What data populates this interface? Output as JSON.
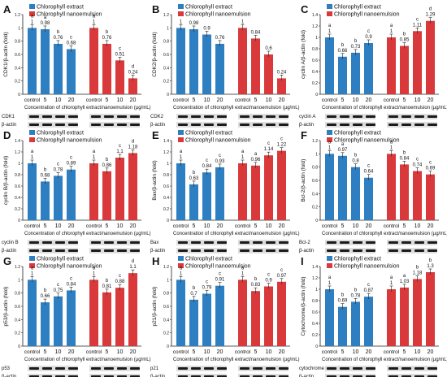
{
  "figure": {
    "shared_xlabel": "Concentration of chlorophyll extract/nanoemulsion (µg/mL)",
    "colors": {
      "extract": "#2e7fc1",
      "nano": "#d9393a"
    },
    "legend": [
      "Chlorophyll extract",
      "Chlorophyll nanoemulsion"
    ]
  },
  "chart_data": [
    {
      "panel": "A",
      "type": "bar",
      "ylabel": "CDK1/β-actin (fold)",
      "ylim": [
        0,
        1.2
      ],
      "categories": [
        "control",
        "5",
        "10",
        "20"
      ],
      "series": [
        {
          "name": "Chlorophyll extract",
          "values": [
            1,
            0.98,
            0.76,
            0.68
          ],
          "sig": [
            "a",
            "a",
            "b",
            "c"
          ]
        },
        {
          "name": "Chlorophyll nanoemulsion",
          "values": [
            1,
            0.76,
            0.51,
            0.24
          ],
          "sig": [
            "a",
            "b",
            "c",
            "d"
          ]
        }
      ],
      "blots": [
        "CDK1",
        "β-actin"
      ]
    },
    {
      "panel": "B",
      "type": "bar",
      "ylabel": "CDK2/β-actin (fold)",
      "ylim": [
        0,
        1.2
      ],
      "categories": [
        "control",
        "5",
        "10",
        "20"
      ],
      "series": [
        {
          "name": "Chlorophyll extract",
          "values": [
            1,
            0.98,
            0.9,
            0.76
          ],
          "sig": [
            "",
            "",
            "",
            ""
          ]
        },
        {
          "name": "Chlorophyll nanoemulsion",
          "values": [
            1,
            0.84,
            0.6,
            0.24
          ],
          "sig": [
            "",
            "",
            "",
            ""
          ]
        }
      ],
      "blots": [
        "CDK2",
        "β-actin"
      ]
    },
    {
      "panel": "C",
      "type": "bar",
      "ylabel": "cyclin A/β-actin (fold)",
      "ylim": [
        0,
        1.4
      ],
      "categories": [
        "control",
        "5",
        "10",
        "20"
      ],
      "series": [
        {
          "name": "Chlorophyll extract",
          "values": [
            1,
            0.66,
            0.73,
            0.9
          ],
          "sig": [
            "a",
            "b",
            "b",
            "c"
          ]
        },
        {
          "name": "Chlorophyll nanoemulsion",
          "values": [
            1,
            0.85,
            1.11,
            1.29
          ],
          "sig": [
            "a",
            "b",
            "c",
            "d"
          ]
        }
      ],
      "blots": [
        "cyclin A",
        "β-actin"
      ]
    },
    {
      "panel": "D",
      "type": "bar",
      "ylabel": "cyclin B/β-actin (fold)",
      "ylim": [
        0,
        1.4
      ],
      "categories": [
        "control",
        "5",
        "10",
        "20"
      ],
      "series": [
        {
          "name": "Chlorophyll extract",
          "values": [
            1,
            0.68,
            0.78,
            0.89
          ],
          "sig": [
            "a",
            "b",
            "c",
            "c"
          ]
        },
        {
          "name": "Chlorophyll nanoemulsion",
          "values": [
            1,
            0.86,
            1.1,
            1.18
          ],
          "sig": [
            "a",
            "b",
            "c",
            "d"
          ]
        }
      ],
      "blots": [
        "cyclin B",
        "β-actin"
      ]
    },
    {
      "panel": "E",
      "type": "bar",
      "ylabel": "Bax/β-actin (fold)",
      "ylim": [
        0,
        1.4
      ],
      "categories": [
        "control",
        "5",
        "10",
        "20"
      ],
      "series": [
        {
          "name": "Chlorophyll extract",
          "values": [
            1,
            0.63,
            0.84,
            0.93
          ],
          "sig": [
            "a",
            "b",
            "c",
            "c"
          ]
        },
        {
          "name": "Chlorophyll nanoemulsion",
          "values": [
            1,
            0.96,
            1.14,
            1.22
          ],
          "sig": [
            "a",
            "a",
            "c",
            "c"
          ]
        }
      ],
      "blots": [
        "Bax",
        "β-actin"
      ]
    },
    {
      "panel": "F",
      "type": "bar",
      "ylabel": "Bcl-2/β-actin (fold)",
      "ylim": [
        0,
        1.2
      ],
      "categories": [
        "control",
        "5",
        "10",
        "20"
      ],
      "series": [
        {
          "name": "Chlorophyll extract",
          "values": [
            1,
            0.97,
            0.8,
            0.64
          ],
          "sig": [
            "a",
            "a",
            "b",
            "c"
          ]
        },
        {
          "name": "Chlorophyll nanoemulsion",
          "values": [
            1,
            0.84,
            0.74,
            0.69
          ],
          "sig": [
            "a",
            "b",
            "c",
            "c"
          ]
        }
      ],
      "blots": [
        "Bcl-2",
        "β-actin"
      ]
    },
    {
      "panel": "G",
      "type": "bar",
      "ylabel": "p53/β-actin (fold)",
      "ylim": [
        0,
        1.2
      ],
      "categories": [
        "control",
        "5",
        "10",
        "20"
      ],
      "series": [
        {
          "name": "Chlorophyll extract",
          "values": [
            1,
            0.66,
            0.75,
            0.84
          ],
          "sig": [
            "a",
            "b",
            "c",
            "c"
          ]
        },
        {
          "name": "Chlorophyll nanoemulsion",
          "values": [
            1,
            0.81,
            0.88,
            1.1
          ],
          "sig": [
            "a",
            "b",
            "c",
            "d"
          ]
        }
      ],
      "blots": [
        "p53",
        "β-actin"
      ]
    },
    {
      "panel": "H",
      "type": "bar",
      "ylabel": "p21/β-actin (fold)",
      "ylim": [
        0,
        1.2
      ],
      "categories": [
        "control",
        "5",
        "10",
        "20"
      ],
      "series": [
        {
          "name": "Chlorophyll extract",
          "values": [
            1,
            0.7,
            0.79,
            0.91
          ],
          "sig": [
            "a",
            "b",
            "c",
            "c"
          ]
        },
        {
          "name": "Chlorophyll nanoemulsion",
          "values": [
            1,
            0.83,
            0.9,
            0.97
          ],
          "sig": [
            "a",
            "b",
            "c",
            "c"
          ]
        }
      ],
      "blots": [
        "p21",
        "β-actin"
      ]
    },
    {
      "panel": "I",
      "type": "bar",
      "ylabel": "Cytochrome/β-actin (fold)",
      "ylim": [
        0,
        1.4
      ],
      "categories": [
        "control",
        "5",
        "10",
        "20"
      ],
      "series": [
        {
          "name": "Chlorophyll extract",
          "values": [
            1,
            0.69,
            0.78,
            0.87
          ],
          "sig": [
            "a",
            "b",
            "b",
            "c"
          ]
        },
        {
          "name": "Chlorophyll nanoemulsion",
          "values": [
            1,
            1.03,
            1.18,
            1.3
          ],
          "sig": [
            "a",
            "a",
            "b",
            "b"
          ]
        }
      ],
      "blots": [
        "cytochrome c",
        "β-actin"
      ]
    }
  ]
}
